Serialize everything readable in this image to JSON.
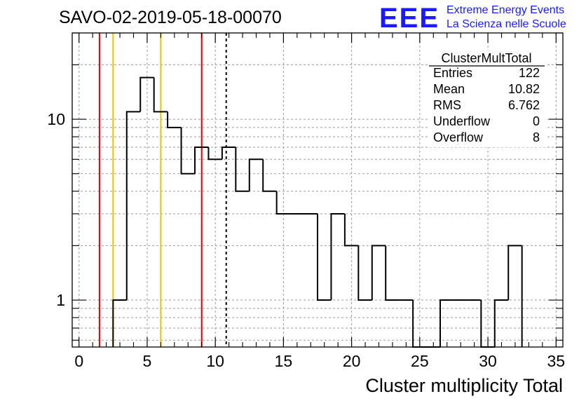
{
  "run_title": "SAVO-02-2019-05-18-00070",
  "logo": {
    "mark": "EEE",
    "line1": "Extreme Energy Events",
    "line2": "La Scienza nelle Scuole",
    "color": "#1a1aff"
  },
  "stats": {
    "name": "ClusterMultTotal",
    "rows": [
      {
        "label": "Entries",
        "value": "122"
      },
      {
        "label": "Mean",
        "value": "10.82"
      },
      {
        "label": "RMS",
        "value": "6.762"
      },
      {
        "label": "Underflow",
        "value": "0"
      },
      {
        "label": "Overflow",
        "value": "8"
      }
    ]
  },
  "chart_data": {
    "type": "histogram",
    "title": "SAVO-02-2019-05-18-00070",
    "xlabel": "Cluster multiplicity Total",
    "ylabel": "",
    "xlim": [
      -0.5,
      35.5
    ],
    "ylim": [
      0.55,
      30
    ],
    "yscale": "log",
    "grid": true,
    "bin_edges_start": 2.5,
    "bin_width": 1,
    "counts": [
      1,
      11,
      17,
      11,
      9,
      5,
      7,
      6,
      7,
      4,
      6,
      4,
      3,
      3,
      3,
      1,
      3,
      2,
      1,
      2,
      1,
      1,
      0,
      0,
      1,
      1,
      1,
      0,
      1,
      2
    ],
    "x_ticks": [
      0,
      5,
      10,
      15,
      20,
      25,
      30,
      35
    ],
    "x_tick_labels": [
      "0",
      "5",
      "10",
      "15",
      "20",
      "25",
      "30",
      "35"
    ],
    "y_ticks": [
      1,
      10
    ],
    "y_tick_labels": [
      "1",
      "10"
    ],
    "line_color": "#000000",
    "vertical_lines": [
      {
        "x": 1.5,
        "color": "#e00000",
        "style": "solid"
      },
      {
        "x": 2.5,
        "color": "#f0c000",
        "style": "solid"
      },
      {
        "x": 6.0,
        "color": "#f0c000",
        "style": "solid"
      },
      {
        "x": 9.0,
        "color": "#e00000",
        "style": "solid"
      },
      {
        "x": 10.8,
        "color": "#000000",
        "style": "dashed"
      }
    ]
  }
}
